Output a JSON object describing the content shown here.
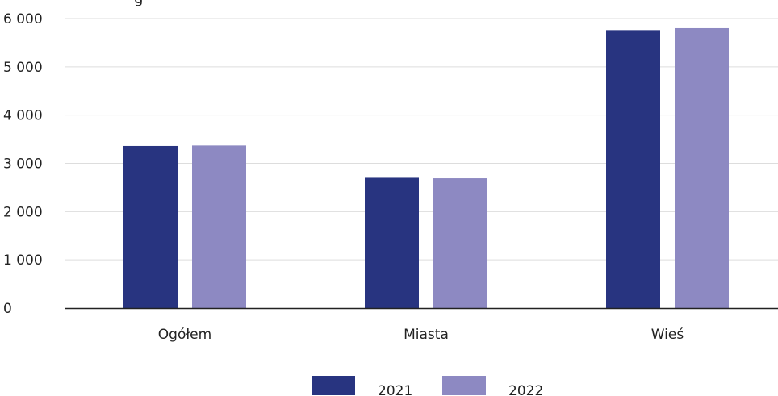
{
  "chart_title_fragment": "g",
  "chart_data": {
    "type": "bar",
    "title": "",
    "xlabel": "",
    "ylabel": "",
    "categories": [
      "Ogółem",
      "Miasta",
      "Wieś"
    ],
    "series": [
      {
        "name": "2021",
        "values": [
          3360,
          2700,
          5760
        ],
        "color": "#283480"
      },
      {
        "name": "2022",
        "values": [
          3370,
          2690,
          5800
        ],
        "color": "#8d89c2"
      }
    ],
    "ylim": [
      0,
      6000
    ],
    "yticks": [
      0,
      1000,
      2000,
      3000,
      4000,
      5000,
      6000
    ],
    "ytick_labels": [
      "0",
      "1 000",
      "2 000",
      "3 000",
      "4 000",
      "5 000",
      "6 000"
    ],
    "grid": true,
    "legend_position": "bottom-center"
  }
}
